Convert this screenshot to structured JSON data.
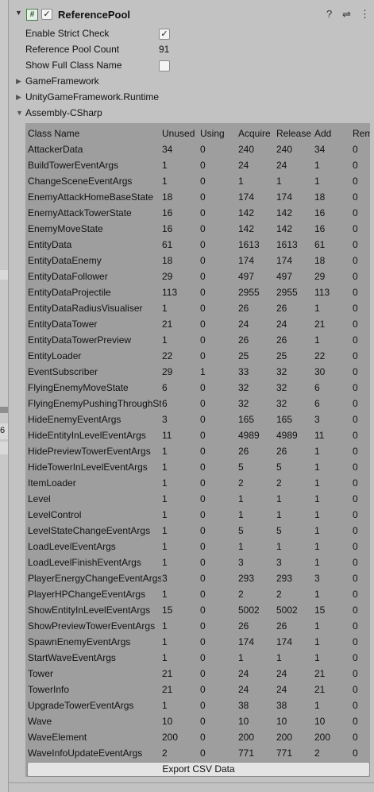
{
  "component": {
    "title": "ReferencePool",
    "enabled": true
  },
  "fields": [
    {
      "label": "Enable Strict Check",
      "type": "checkbox",
      "checked": true
    },
    {
      "label": "Reference Pool Count",
      "type": "text",
      "value": "91"
    },
    {
      "label": "Show Full Class Name",
      "type": "checkbox",
      "checked": false
    }
  ],
  "assemblies": [
    {
      "label": "GameFramework",
      "expanded": false
    },
    {
      "label": "UnityGameFramework.Runtime",
      "expanded": false
    },
    {
      "label": "Assembly-CSharp",
      "expanded": true
    }
  ],
  "left_edge_text": "6",
  "table": {
    "headers": [
      "Class Name",
      "Unused",
      "Using",
      "Acquire",
      "Release",
      "Add",
      "Rem"
    ],
    "rows": [
      [
        "AttackerData",
        "34",
        "0",
        "240",
        "240",
        "34",
        "0"
      ],
      [
        "BuildTowerEventArgs",
        "1",
        "0",
        "24",
        "24",
        "1",
        "0"
      ],
      [
        "ChangeSceneEventArgs",
        "1",
        "0",
        "1",
        "1",
        "1",
        "0"
      ],
      [
        "EnemyAttackHomeBaseState",
        "18",
        "0",
        "174",
        "174",
        "18",
        "0"
      ],
      [
        "EnemyAttackTowerState",
        "16",
        "0",
        "142",
        "142",
        "16",
        "0"
      ],
      [
        "EnemyMoveState",
        "16",
        "0",
        "142",
        "142",
        "16",
        "0"
      ],
      [
        "EntityData",
        "61",
        "0",
        "1613",
        "1613",
        "61",
        "0"
      ],
      [
        "EntityDataEnemy",
        "18",
        "0",
        "174",
        "174",
        "18",
        "0"
      ],
      [
        "EntityDataFollower",
        "29",
        "0",
        "497",
        "497",
        "29",
        "0"
      ],
      [
        "EntityDataProjectile",
        "113",
        "0",
        "2955",
        "2955",
        "113",
        "0"
      ],
      [
        "EntityDataRadiusVisualiser",
        "1",
        "0",
        "26",
        "26",
        "1",
        "0"
      ],
      [
        "EntityDataTower",
        "21",
        "0",
        "24",
        "24",
        "21",
        "0"
      ],
      [
        "EntityDataTowerPreview",
        "1",
        "0",
        "26",
        "26",
        "1",
        "0"
      ],
      [
        "EntityLoader",
        "22",
        "0",
        "25",
        "25",
        "22",
        "0"
      ],
      [
        "EventSubscriber",
        "29",
        "1",
        "33",
        "32",
        "30",
        "0"
      ],
      [
        "FlyingEnemyMoveState",
        "6",
        "0",
        "32",
        "32",
        "6",
        "0"
      ],
      [
        "FlyingEnemyPushingThroughState",
        "6",
        "0",
        "32",
        "32",
        "6",
        "0"
      ],
      [
        "HideEnemyEventArgs",
        "3",
        "0",
        "165",
        "165",
        "3",
        "0"
      ],
      [
        "HideEntityInLevelEventArgs",
        "11",
        "0",
        "4989",
        "4989",
        "11",
        "0"
      ],
      [
        "HidePreviewTowerEventArgs",
        "1",
        "0",
        "26",
        "26",
        "1",
        "0"
      ],
      [
        "HideTowerInLevelEventArgs",
        "1",
        "0",
        "5",
        "5",
        "1",
        "0"
      ],
      [
        "ItemLoader",
        "1",
        "0",
        "2",
        "2",
        "1",
        "0"
      ],
      [
        "Level",
        "1",
        "0",
        "1",
        "1",
        "1",
        "0"
      ],
      [
        "LevelControl",
        "1",
        "0",
        "1",
        "1",
        "1",
        "0"
      ],
      [
        "LevelStateChangeEventArgs",
        "1",
        "0",
        "5",
        "5",
        "1",
        "0"
      ],
      [
        "LoadLevelEventArgs",
        "1",
        "0",
        "1",
        "1",
        "1",
        "0"
      ],
      [
        "LoadLevelFinishEventArgs",
        "1",
        "0",
        "3",
        "3",
        "1",
        "0"
      ],
      [
        "PlayerEnergyChangeEventArgs",
        "3",
        "0",
        "293",
        "293",
        "3",
        "0"
      ],
      [
        "PlayerHPChangeEventArgs",
        "1",
        "0",
        "2",
        "2",
        "1",
        "0"
      ],
      [
        "ShowEntityInLevelEventArgs",
        "15",
        "0",
        "5002",
        "5002",
        "15",
        "0"
      ],
      [
        "ShowPreviewTowerEventArgs",
        "1",
        "0",
        "26",
        "26",
        "1",
        "0"
      ],
      [
        "SpawnEnemyEventArgs",
        "1",
        "0",
        "174",
        "174",
        "1",
        "0"
      ],
      [
        "StartWaveEventArgs",
        "1",
        "0",
        "1",
        "1",
        "1",
        "0"
      ],
      [
        "Tower",
        "21",
        "0",
        "24",
        "24",
        "21",
        "0"
      ],
      [
        "TowerInfo",
        "21",
        "0",
        "24",
        "24",
        "21",
        "0"
      ],
      [
        "UpgradeTowerEventArgs",
        "1",
        "0",
        "38",
        "38",
        "1",
        "0"
      ],
      [
        "Wave",
        "10",
        "0",
        "10",
        "10",
        "10",
        "0"
      ],
      [
        "WaveElement",
        "200",
        "0",
        "200",
        "200",
        "200",
        "0"
      ],
      [
        "WaveInfoUpdateEventArgs",
        "2",
        "0",
        "771",
        "771",
        "2",
        "0"
      ]
    ]
  },
  "export_button": "Export CSV Data",
  "icons": {
    "help": "help-icon",
    "presets": "presets-icon",
    "menu": "kebab-menu-icon"
  }
}
